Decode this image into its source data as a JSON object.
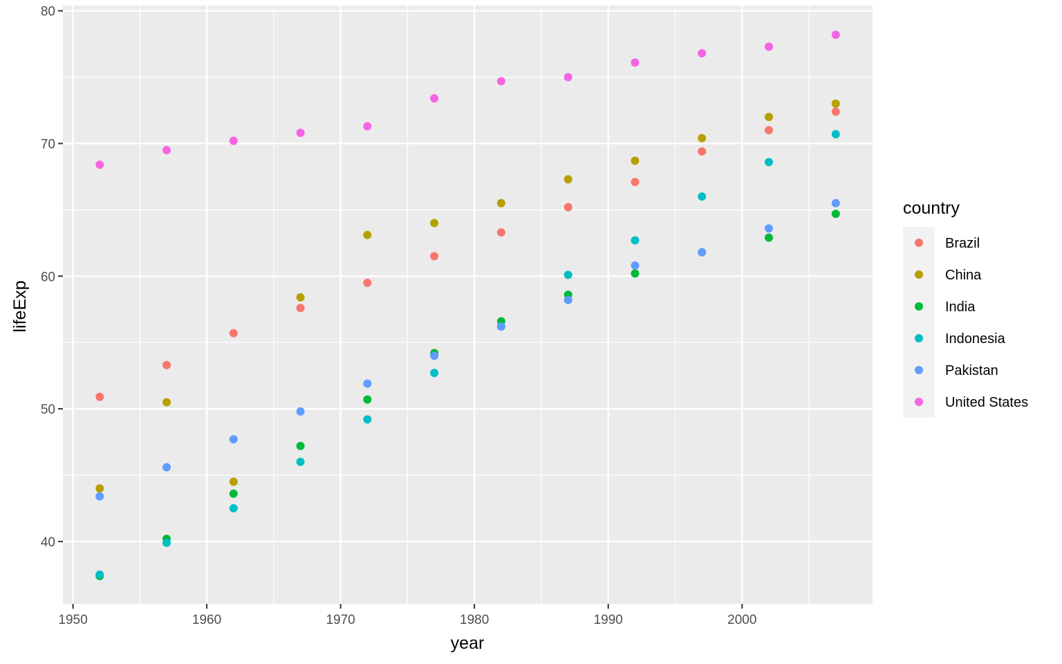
{
  "chart_data": {
    "type": "scatter",
    "title": "",
    "xlabel": "year",
    "ylabel": "lifeExp",
    "xlim": [
      1949.25,
      2009.75
    ],
    "ylim": [
      35.3,
      80.4
    ],
    "x_ticks": [
      1950,
      1960,
      1970,
      1980,
      1990,
      2000
    ],
    "y_ticks": [
      40,
      50,
      60,
      70,
      80
    ],
    "grid": true,
    "background": "#ebebeb",
    "legend": {
      "title": "country",
      "position": "right"
    },
    "x": [
      1952,
      1957,
      1962,
      1967,
      1972,
      1977,
      1982,
      1987,
      1992,
      1997,
      2002,
      2007
    ],
    "series": [
      {
        "name": "Brazil",
        "color": "#f8766d",
        "values": [
          50.9,
          53.3,
          55.7,
          57.6,
          59.5,
          61.5,
          63.3,
          65.2,
          67.1,
          69.4,
          71.0,
          72.4
        ]
      },
      {
        "name": "China",
        "color": "#b79f00",
        "values": [
          44.0,
          50.5,
          44.5,
          58.4,
          63.1,
          64.0,
          65.5,
          67.3,
          68.7,
          70.4,
          72.0,
          73.0
        ]
      },
      {
        "name": "India",
        "color": "#00ba38",
        "values": [
          37.4,
          40.2,
          43.6,
          47.2,
          50.7,
          54.2,
          56.6,
          58.6,
          60.2,
          61.8,
          62.9,
          64.7
        ]
      },
      {
        "name": "Indonesia",
        "color": "#00bfc4",
        "values": [
          37.5,
          39.9,
          42.5,
          46.0,
          49.2,
          52.7,
          56.2,
          60.1,
          62.7,
          66.0,
          68.6,
          70.7
        ]
      },
      {
        "name": "Pakistan",
        "color": "#619cff",
        "values": [
          43.4,
          45.6,
          47.7,
          49.8,
          51.9,
          54.0,
          56.2,
          58.2,
          60.8,
          61.8,
          63.6,
          65.5
        ]
      },
      {
        "name": "United States",
        "color": "#f564e3",
        "values": [
          68.4,
          69.5,
          70.2,
          70.8,
          71.3,
          73.4,
          74.7,
          75.0,
          76.1,
          76.8,
          77.3,
          78.2
        ]
      }
    ]
  }
}
